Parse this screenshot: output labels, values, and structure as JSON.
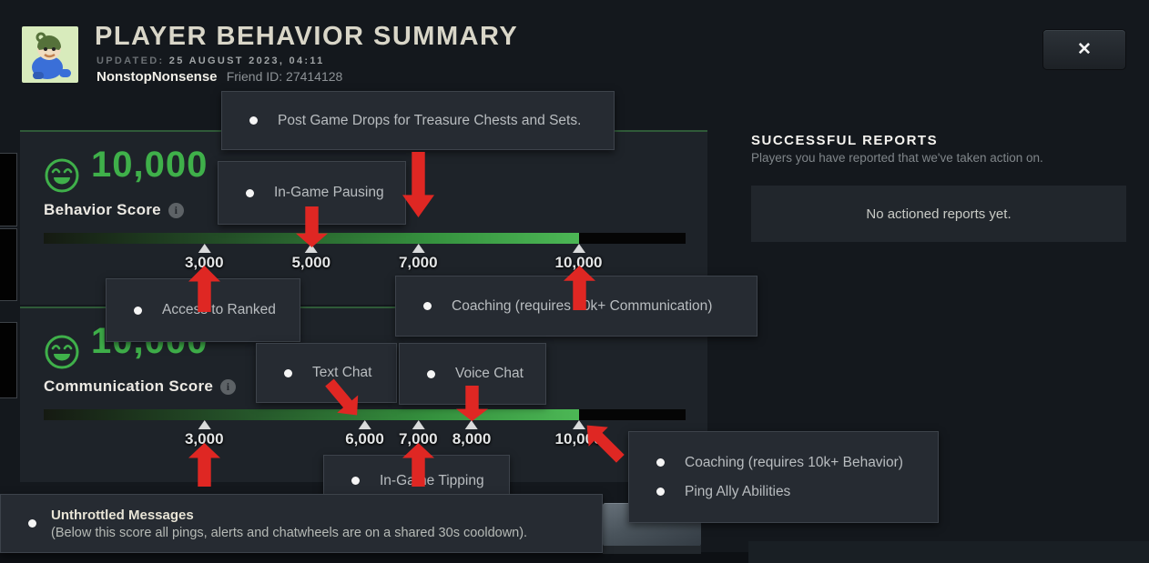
{
  "header": {
    "title": "PLAYER BEHAVIOR SUMMARY",
    "updated_label": "UPDATED:",
    "updated_value": "25 AUGUST 2023, 04:11",
    "player_name": "NonstopNonsense",
    "friend_id": "Friend ID: 27414128"
  },
  "icons": {
    "close": "✕",
    "info": "i"
  },
  "colors": {
    "score_green": "#3fb04a",
    "arrow_red": "#df2723",
    "bar_fill_end": "#4cb755"
  },
  "scores": {
    "behavior": {
      "display": "10,000",
      "value": 10000,
      "axis_max": 12000,
      "label": "Behavior Score",
      "ticks": [
        {
          "value": 3000,
          "label": "3,000"
        },
        {
          "value": 5000,
          "label": "5,000"
        },
        {
          "value": 7000,
          "label": "7,000"
        },
        {
          "value": 10000,
          "label": "10,000"
        }
      ]
    },
    "communication": {
      "display": "10,000",
      "value": 10000,
      "axis_max": 12000,
      "label": "Communication Score",
      "ticks": [
        {
          "value": 3000,
          "label": "3,000"
        },
        {
          "value": 6000,
          "label": "6,000"
        },
        {
          "value": 7000,
          "label": "7,000"
        },
        {
          "value": 8000,
          "label": "8,000"
        },
        {
          "value": 10000,
          "label": "10,000"
        }
      ]
    }
  },
  "tooltips": {
    "post_game_drops": {
      "text": "Post Game Drops for Treasure Chests and Sets."
    },
    "in_game_pausing": {
      "text": "In-Game Pausing"
    },
    "access_to_ranked": {
      "text": "Access to Ranked"
    },
    "coaching_communication": {
      "text": "Coaching (requires 10k+ Communication)"
    },
    "text_chat": {
      "text": "Text Chat"
    },
    "voice_chat": {
      "text": "Voice Chat"
    },
    "in_game_tipping": {
      "text": "In-Game Tipping"
    },
    "coaching_behavior": {
      "line1": "Coaching (requires 10k+ Behavior)",
      "line2": "Ping Ally Abilities"
    },
    "unthrottled_messages": {
      "title": "Unthrottled Messages",
      "desc": "(Below this score all pings, alerts and chatwheels are on a shared 30s cooldown)."
    }
  },
  "reports": {
    "title": "SUCCESSFUL REPORTS",
    "subtitle": "Players you have reported that we've taken action on.",
    "empty_message": "No actioned reports yet."
  }
}
